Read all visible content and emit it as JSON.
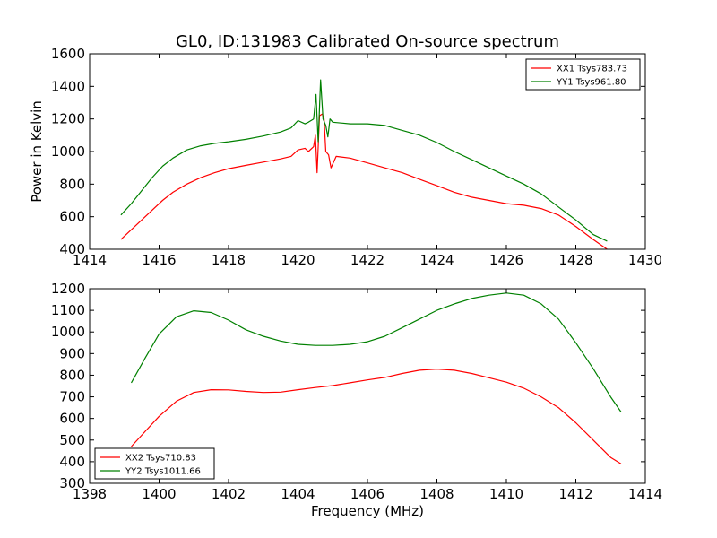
{
  "chart_data": [
    {
      "type": "line",
      "title": "GL0, ID:131983 Calibrated On-source spectrum",
      "xlabel": "",
      "ylabel": "Power in Kelvin",
      "xlim": [
        1414,
        1430
      ],
      "ylim": [
        400,
        1600
      ],
      "xticks": [
        1414,
        1416,
        1418,
        1420,
        1422,
        1424,
        1426,
        1428,
        1430
      ],
      "yticks": [
        400,
        600,
        800,
        1000,
        1200,
        1400,
        1600
      ],
      "legend_position": "top-right",
      "series": [
        {
          "name": "XX1 Tsys783.73",
          "color": "#ff0000",
          "x": [
            1414.9,
            1415.2,
            1415.5,
            1415.8,
            1416.1,
            1416.4,
            1416.8,
            1417.2,
            1417.6,
            1418.0,
            1418.5,
            1419.0,
            1419.5,
            1419.8,
            1420.0,
            1420.2,
            1420.3,
            1420.45,
            1420.5,
            1420.55,
            1420.62,
            1420.7,
            1420.75,
            1420.8,
            1420.88,
            1420.95,
            1421.1,
            1421.5,
            1422.0,
            1422.5,
            1423.0,
            1423.5,
            1424.0,
            1424.5,
            1425.0,
            1425.5,
            1426.0,
            1426.5,
            1427.0,
            1427.5,
            1428.0,
            1428.5,
            1428.9
          ],
          "y": [
            460,
            520,
            580,
            640,
            700,
            750,
            800,
            840,
            870,
            895,
            915,
            935,
            955,
            970,
            1010,
            1020,
            1000,
            1030,
            1100,
            870,
            1220,
            1230,
            1200,
            1000,
            980,
            900,
            970,
            960,
            930,
            900,
            870,
            830,
            790,
            750,
            720,
            700,
            680,
            670,
            650,
            610,
            540,
            460,
            400
          ]
        },
        {
          "name": "YY1 Tsys961.80",
          "color": "#008000",
          "x": [
            1414.9,
            1415.2,
            1415.5,
            1415.8,
            1416.1,
            1416.4,
            1416.8,
            1417.2,
            1417.6,
            1418.0,
            1418.5,
            1419.0,
            1419.5,
            1419.8,
            1420.0,
            1420.2,
            1420.3,
            1420.45,
            1420.52,
            1420.58,
            1420.65,
            1420.72,
            1420.8,
            1420.86,
            1420.92,
            1421.0,
            1421.5,
            1422.0,
            1422.5,
            1423.0,
            1423.5,
            1424.0,
            1424.5,
            1425.0,
            1425.5,
            1426.0,
            1426.5,
            1427.0,
            1427.5,
            1428.0,
            1428.5,
            1428.9
          ],
          "y": [
            610,
            680,
            760,
            840,
            910,
            960,
            1010,
            1035,
            1050,
            1060,
            1075,
            1095,
            1120,
            1145,
            1190,
            1170,
            1180,
            1200,
            1350,
            1060,
            1440,
            1200,
            1160,
            1090,
            1200,
            1180,
            1170,
            1170,
            1160,
            1130,
            1100,
            1055,
            1000,
            950,
            900,
            850,
            800,
            740,
            660,
            580,
            490,
            450
          ]
        }
      ]
    },
    {
      "type": "line",
      "title": "",
      "xlabel": "Frequency (MHz)",
      "ylabel": "",
      "xlim": [
        1398,
        1414
      ],
      "ylim": [
        300,
        1200
      ],
      "xticks": [
        1398,
        1400,
        1402,
        1404,
        1406,
        1408,
        1410,
        1412,
        1414
      ],
      "yticks": [
        300,
        400,
        500,
        600,
        700,
        800,
        900,
        1000,
        1100,
        1200
      ],
      "legend_position": "bottom-left",
      "series": [
        {
          "name": "XX2 Tsys710.83",
          "color": "#ff0000",
          "x": [
            1399.2,
            1399.6,
            1400.0,
            1400.5,
            1401.0,
            1401.5,
            1402.0,
            1402.5,
            1403.0,
            1403.5,
            1404.0,
            1404.5,
            1405.0,
            1405.5,
            1406.0,
            1406.5,
            1407.0,
            1407.5,
            1408.0,
            1408.5,
            1409.0,
            1409.5,
            1410.0,
            1410.5,
            1411.0,
            1411.5,
            1412.0,
            1412.5,
            1413.0,
            1413.3
          ],
          "y": [
            470,
            540,
            610,
            680,
            720,
            733,
            732,
            725,
            720,
            722,
            733,
            743,
            752,
            765,
            778,
            790,
            808,
            823,
            828,
            823,
            808,
            788,
            768,
            740,
            700,
            650,
            580,
            500,
            420,
            390
          ]
        },
        {
          "name": "YY2 Tsys1011.66",
          "color": "#008000",
          "x": [
            1399.2,
            1399.6,
            1400.0,
            1400.5,
            1401.0,
            1401.5,
            1402.0,
            1402.5,
            1403.0,
            1403.5,
            1404.0,
            1404.5,
            1405.0,
            1405.5,
            1406.0,
            1406.5,
            1407.0,
            1407.5,
            1408.0,
            1408.5,
            1409.0,
            1409.5,
            1410.0,
            1410.5,
            1411.0,
            1411.5,
            1412.0,
            1412.5,
            1413.0,
            1413.3
          ],
          "y": [
            765,
            880,
            990,
            1070,
            1098,
            1090,
            1055,
            1010,
            980,
            958,
            943,
            938,
            938,
            943,
            955,
            980,
            1020,
            1060,
            1100,
            1130,
            1155,
            1170,
            1180,
            1170,
            1130,
            1060,
            950,
            830,
            700,
            630
          ]
        }
      ]
    }
  ]
}
